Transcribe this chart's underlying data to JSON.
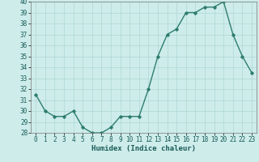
{
  "x": [
    0,
    1,
    2,
    3,
    4,
    5,
    6,
    7,
    8,
    9,
    10,
    11,
    12,
    13,
    14,
    15,
    16,
    17,
    18,
    19,
    20,
    21,
    22,
    23
  ],
  "y": [
    31.5,
    30.0,
    29.5,
    29.5,
    30.0,
    28.5,
    28.0,
    28.0,
    28.5,
    29.5,
    29.5,
    29.5,
    32.0,
    35.0,
    37.0,
    37.5,
    39.0,
    39.0,
    39.5,
    39.5,
    40.0,
    37.0,
    35.0,
    33.5
  ],
  "line_color": "#2e7d6e",
  "marker": "D",
  "marker_size": 1.8,
  "bg_color": "#cdecea",
  "grid_color": "#afd8d4",
  "xlabel": "Humidex (Indice chaleur)",
  "xlim": [
    -0.5,
    23.5
  ],
  "ylim": [
    28,
    40
  ],
  "yticks": [
    28,
    29,
    30,
    31,
    32,
    33,
    34,
    35,
    36,
    37,
    38,
    39,
    40
  ],
  "xticks": [
    0,
    1,
    2,
    3,
    4,
    5,
    6,
    7,
    8,
    9,
    10,
    11,
    12,
    13,
    14,
    15,
    16,
    17,
    18,
    19,
    20,
    21,
    22,
    23
  ],
  "tick_label_fontsize": 5.5,
  "xlabel_fontsize": 6.5,
  "linewidth": 1.0
}
